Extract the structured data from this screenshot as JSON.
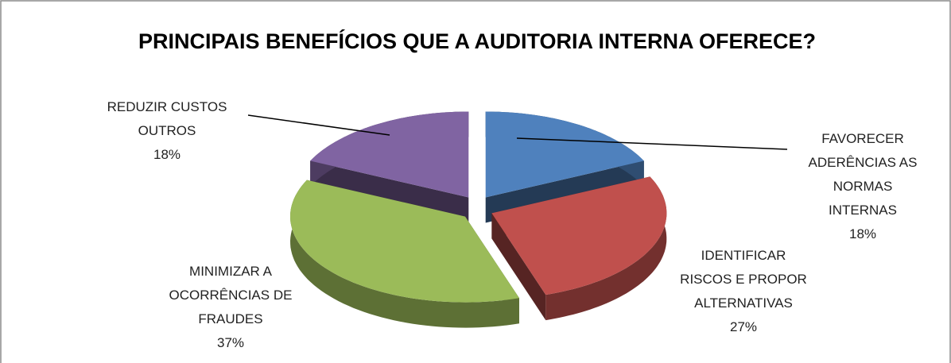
{
  "chart_data": {
    "type": "pie",
    "title": "PRINCIPAIS BENEFÍCIOS QUE A AUDITORIA INTERNA OFERECE?",
    "categories": [
      "FAVORECER ADERÊNCIAS AS NORMAS INTERNAS",
      "IDENTIFICAR RISCOS E PROPOR ALTERNATIVAS",
      "MINIMIZAR A OCORRÊNCIAS DE FRAUDES",
      "REDUZIR CUSTOS OUTROS"
    ],
    "values": [
      18,
      27,
      37,
      18
    ],
    "value_labels": [
      "18%",
      "27%",
      "37%",
      "18%"
    ],
    "colors": [
      "#4f81bd",
      "#c0504d",
      "#9bbb59",
      "#8064a2"
    ]
  }
}
